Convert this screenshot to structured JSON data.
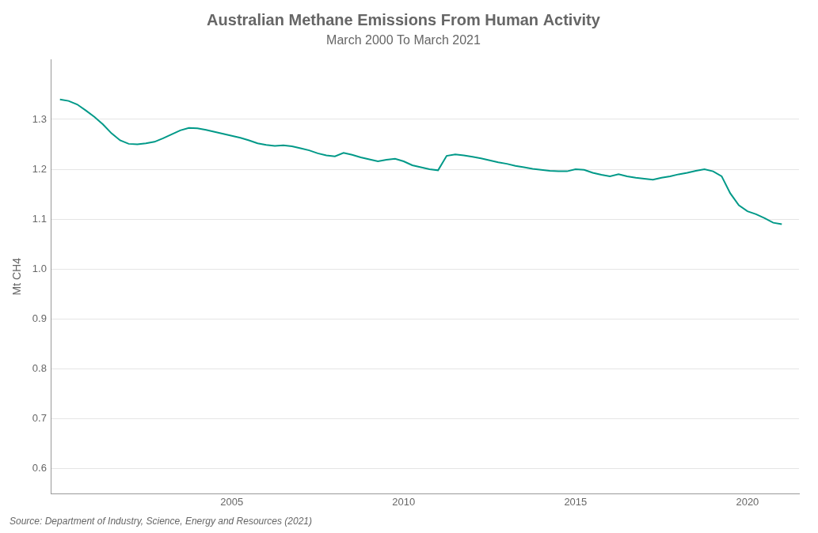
{
  "chart_data": {
    "type": "line",
    "title": "Australian Methane Emissions From Human Activity",
    "subtitle": "March 2000 To March 2021",
    "y_label": "Mt CH4",
    "annotations": [
      "Source: Department of Industry, Science, Energy and Resources (2021)"
    ],
    "color": "#009988",
    "grid": "y",
    "xlim": [
      1999.75,
      2021.5
    ],
    "xticks": [
      2005,
      2010,
      2015,
      2020
    ],
    "ylim": [
      0.55,
      1.42
    ],
    "yticks": [
      0.6,
      0.7,
      0.8,
      0.9,
      {
        "value": 1.0,
        "label": "1.0"
      },
      1.1,
      1.2,
      1.3
    ],
    "x": [
      2000.0,
      2000.25,
      2000.5,
      2000.75,
      2001.0,
      2001.25,
      2001.5,
      2001.75,
      2002.0,
      2002.25,
      2002.5,
      2002.75,
      2003.0,
      2003.25,
      2003.5,
      2003.75,
      2004.0,
      2004.25,
      2004.5,
      2004.75,
      2005.0,
      2005.25,
      2005.5,
      2005.75,
      2006.0,
      2006.25,
      2006.5,
      2006.75,
      2007.0,
      2007.25,
      2007.5,
      2007.75,
      2008.0,
      2008.25,
      2008.5,
      2008.75,
      2009.0,
      2009.25,
      2009.5,
      2009.75,
      2010.0,
      2010.25,
      2010.5,
      2010.75,
      2011.0,
      2011.25,
      2011.5,
      2011.75,
      2012.0,
      2012.25,
      2012.5,
      2012.75,
      2013.0,
      2013.25,
      2013.5,
      2013.75,
      2014.0,
      2014.25,
      2014.5,
      2014.75,
      2015.0,
      2015.25,
      2015.5,
      2015.75,
      2016.0,
      2016.25,
      2016.5,
      2016.75,
      2017.0,
      2017.25,
      2017.5,
      2017.75,
      2018.0,
      2018.25,
      2018.5,
      2018.75,
      2019.0,
      2019.25,
      2019.5,
      2019.75,
      2020.0,
      2020.25,
      2020.5,
      2020.75,
      2021.0
    ],
    "values": [
      1.34,
      1.337,
      1.33,
      1.318,
      1.305,
      1.29,
      1.272,
      1.258,
      1.251,
      1.25,
      1.252,
      1.255,
      1.262,
      1.27,
      1.278,
      1.283,
      1.282,
      1.279,
      1.275,
      1.271,
      1.267,
      1.263,
      1.258,
      1.252,
      1.249,
      1.247,
      1.248,
      1.246,
      1.242,
      1.238,
      1.232,
      1.228,
      1.226,
      1.233,
      1.229,
      1.224,
      1.22,
      1.216,
      1.219,
      1.221,
      1.216,
      1.208,
      1.204,
      1.2,
      1.198,
      1.227,
      1.23,
      1.228,
      1.225,
      1.222,
      1.218,
      1.214,
      1.211,
      1.207,
      1.204,
      1.201,
      1.199,
      1.197,
      1.196,
      1.196,
      1.2,
      1.199,
      1.193,
      1.189,
      1.186,
      1.19,
      1.186,
      1.183,
      1.181,
      1.179,
      1.183,
      1.186,
      1.19,
      1.193,
      1.197,
      1.2,
      1.196,
      1.186,
      1.152,
      1.128,
      1.116,
      1.11,
      1.102,
      1.093,
      1.09
    ]
  }
}
